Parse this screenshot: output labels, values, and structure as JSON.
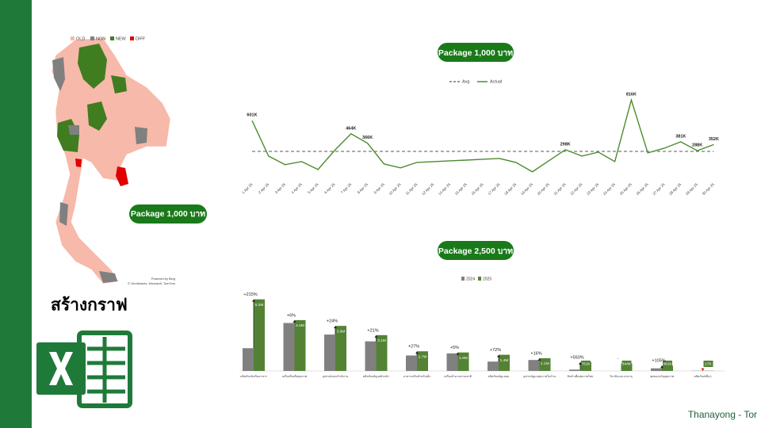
{
  "heading": "สร้างกราฟ",
  "author": "Thanayong - Tor",
  "map": {
    "label": "Package 1,000 บาท",
    "legend": [
      {
        "name": "OLD",
        "color": "#f7b9a9"
      },
      {
        "name": "NON",
        "color": "#808080"
      },
      {
        "name": "NEW",
        "color": "#3f7d20"
      },
      {
        "name": "DIFF",
        "color": "#e00000"
      }
    ],
    "credit1": "Powered by Bing",
    "credit2": "© GeoNames, Microsoft, TomTom"
  },
  "chart_data": [
    {
      "type": "line",
      "title": "Package 1,000 บาท",
      "categories": [
        "1 Apr 25",
        "2 Apr 25",
        "3 Apr 25",
        "4 Apr 25",
        "5 Apr 25",
        "6 Apr 25",
        "7 Apr 25",
        "8 Apr 25",
        "9 Apr 25",
        "10 Apr 25",
        "11 Apr 25",
        "12 Apr 25",
        "14 Apr 25",
        "15 Apr 25",
        "16 Apr 25",
        "17 Apr 25",
        "18 Apr 25",
        "19 Apr 25",
        "20 Apr 25",
        "21 Apr 25",
        "22 Apr 25",
        "23 Apr 25",
        "24 Apr 25",
        "25 Apr 25",
        "26 Apr 25",
        "27 Apr 25",
        "28 Apr 25",
        "29 Apr 25",
        "30 Apr 25"
      ],
      "series": [
        {
          "name": "Actual",
          "color": "#4e8a2e",
          "values": [
            601000,
            232000,
            142000,
            175000,
            92000,
            290000,
            464000,
            366000,
            150000,
            109000,
            166000,
            174000,
            182000,
            190000,
            199000,
            207000,
            166000,
            68000,
            183000,
            298000,
            232000,
            273000,
            175000,
            816000,
            265000,
            314000,
            381000,
            288000,
            352000
          ],
          "value_labels": [
            "601K",
            null,
            null,
            null,
            null,
            null,
            "464K",
            "366K",
            null,
            null,
            null,
            null,
            null,
            null,
            null,
            null,
            null,
            null,
            null,
            "298K",
            null,
            null,
            null,
            "816K",
            null,
            null,
            "381K",
            "288K",
            "352K"
          ]
        }
      ],
      "reference_lines": [
        {
          "name": "Avg",
          "value": 281000,
          "color": "#595959"
        }
      ],
      "ylim": [
        0,
        900000
      ]
    },
    {
      "type": "bar",
      "title": "Package 2,500 บาท",
      "categories": [
        "ผลิตภัณฑ์เสริมอาหาร",
        "เครื่องดื่มเพื่อสุขภาพ",
        "อุปกรณ์ออกกำลังกาย",
        "ผลิตภัณฑ์ดูแลผิวหน้า",
        "อาหารเสริมสำหรับเด็ก",
        "เครื่องสำอางธรรมชาติ",
        "ผลิตภัณฑ์ดูแลผม",
        "อุปกรณ์ดูแลสุขภาพในบ้าน",
        "สินค้าเพื่อสุขภาพใหม่",
        "วิตามินและแร่ธาตุ",
        "ชุดของขวัญสุขภาพ",
        "ผลิตภัณฑ์อื่นๆ"
      ],
      "series": [
        {
          "name": "2024",
          "color": "#808080",
          "values": [
            1970000,
            4150000,
            3150000,
            2560000,
            1340000,
            1520000,
            810000,
            950000,
            117000,
            0,
            225000,
            20000
          ]
        },
        {
          "name": "2025",
          "color": "#548235",
          "values": [
            6200000,
            4400000,
            3900000,
            3100000,
            1700000,
            1600000,
            1400000,
            1100000,
            761000,
            644000,
            461000,
            17000
          ],
          "value_labels": [
            "6.2M",
            "4.4M",
            "3.9M",
            "3.1M",
            "1.7M",
            "1.6M",
            "1.4M",
            "1.1M",
            "761K",
            "644K",
            "461K",
            "17K"
          ]
        }
      ],
      "change_labels": [
        "+215%",
        "+6%",
        "+24%",
        "+21%",
        "+27%",
        "+5%",
        "+72%",
        "+16%",
        "+550%",
        "-",
        "+105%",
        null
      ],
      "ylim": [
        0,
        7000000
      ]
    }
  ]
}
